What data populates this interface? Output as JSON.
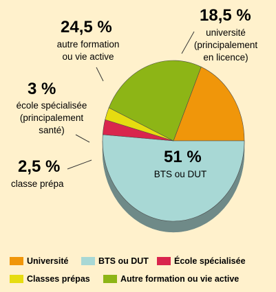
{
  "chart_data": {
    "type": "pie",
    "series": [
      {
        "name": "Université",
        "value": 18.5,
        "percent_label": "18,5 %",
        "description_lines": [
          "université",
          "(principalement",
          "en licence)"
        ],
        "color": "#f0960a",
        "side_color": "#b86f06"
      },
      {
        "name": "BTS ou DUT",
        "value": 51,
        "percent_label": "51 %",
        "description_lines": [
          "BTS ou DUT"
        ],
        "color": "#a8d8d5",
        "side_color": "#6f8a88"
      },
      {
        "name": "École spécialisée",
        "value": 3,
        "percent_label": "3 %",
        "description_lines": [
          "école spécialisée",
          "(principalement",
          "santé)"
        ],
        "color": "#d9254d",
        "side_color": "#8e1530"
      },
      {
        "name": "Classes prépas",
        "value": 2.5,
        "percent_label": "2,5 %",
        "description_lines": [
          "classe prépa"
        ],
        "color": "#e6dc10",
        "side_color": "#968f0a"
      },
      {
        "name": "Autre formation ou vie active",
        "value": 24.5,
        "percent_label": "24,5 %",
        "description_lines": [
          "autre formation",
          "ou vie active"
        ],
        "color": "#8db516",
        "side_color": "#5d7a0d"
      }
    ],
    "legend_position": "bottom",
    "legend": [
      {
        "label": "Université",
        "color": "#f0960a"
      },
      {
        "label": "BTS ou DUT",
        "color": "#a8d8d5"
      },
      {
        "label": "École spécialisée",
        "color": "#d9254d"
      },
      {
        "label": "Classes prépas",
        "color": "#e6dc10"
      },
      {
        "label": "Autre formation ou vie active",
        "color": "#8db516"
      }
    ]
  },
  "colors": {
    "background": "#fff1cc",
    "divider": "#4a4a4a",
    "leader_line": "#333333"
  }
}
